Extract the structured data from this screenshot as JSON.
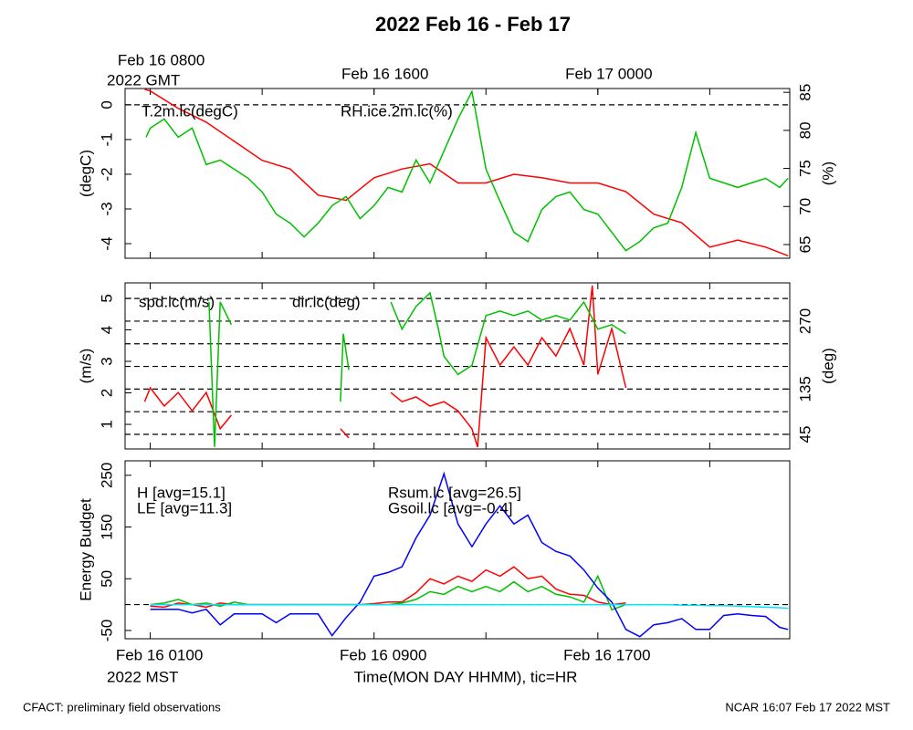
{
  "title": "2022 Feb 16 - Feb 17",
  "footer_left": "CFACT: preliminary field observations",
  "footer_right": "NCAR 16:07 Feb 17 2022 MST",
  "chart_data": [
    {
      "type": "line",
      "ylabel": "(degC)",
      "y2label": "(%)",
      "xlim": [
        0.1,
        23.86
      ],
      "xticks": [
        1,
        5,
        9,
        13,
        17,
        21
      ],
      "top_xticks": [
        {
          "value": 1,
          "label": "Feb 16 0800"
        },
        {
          "value": 9,
          "label": "Feb 16 1600"
        },
        {
          "value": 17,
          "label": "Feb 17 0000"
        }
      ],
      "top_xtick_note": "2022 GMT",
      "ylim": [
        -4.42,
        0.47
      ],
      "yticks": [
        0,
        -1,
        -2,
        -3,
        -4
      ],
      "y2lim": [
        63.2,
        85.5
      ],
      "y2ticks": [
        65,
        70,
        75,
        80,
        85
      ],
      "hlines": [
        0
      ],
      "hlines_axis": "y",
      "series": [
        {
          "name": "T.2m.lc(degC)",
          "color": "#ff0000",
          "axis": "y",
          "x": [
            0.8,
            1,
            2,
            3,
            4,
            5,
            6,
            7,
            8,
            9,
            10,
            11,
            12,
            13,
            14,
            15,
            16,
            17,
            18,
            19,
            20,
            21,
            22,
            23,
            23.8
          ],
          "values": [
            0.45,
            0.4,
            -0.1,
            -0.5,
            -1.05,
            -1.6,
            -1.85,
            -2.6,
            -2.75,
            -2.1,
            -1.85,
            -1.7,
            -2.25,
            -2.25,
            -2,
            -2.1,
            -2.25,
            -2.25,
            -2.5,
            -3.15,
            -3.4,
            -4.1,
            -3.9,
            -4.1,
            -4.35
          ]
        },
        {
          "name": "RH.ice.2m.lc(%)",
          "color": "#00c000",
          "axis": "y2",
          "x": [
            0.85,
            1,
            1.5,
            2,
            2.5,
            3,
            3.5,
            4,
            4.5,
            5,
            5.5,
            6,
            6.5,
            7,
            7.5,
            8,
            8.5,
            9,
            9.5,
            10,
            10.5,
            11,
            11.5,
            12,
            12.5,
            13,
            13.5,
            14,
            14.5,
            15,
            15.5,
            16,
            16.5,
            17,
            17.5,
            18,
            18.5,
            19,
            19.5,
            20,
            20.5,
            21,
            21.5,
            22,
            22.5,
            23,
            23.5,
            23.8
          ],
          "values": [
            79.1,
            80.3,
            81.5,
            79.1,
            80.3,
            75.5,
            76.1,
            74.9,
            73.7,
            71.9,
            69,
            67.8,
            66,
            67.8,
            70.1,
            71.3,
            68.4,
            70.1,
            72.5,
            71.9,
            76.1,
            73.1,
            77.3,
            81.5,
            85.1,
            74.9,
            70.7,
            66.6,
            65.4,
            69.6,
            71.3,
            71.9,
            69.6,
            69,
            66.6,
            64.2,
            65.4,
            67.2,
            67.8,
            72.5,
            79.7,
            73.7,
            73.1,
            72.5,
            73.1,
            73.7,
            72.5,
            73.7
          ]
        }
      ]
    },
    {
      "type": "line",
      "ylabel": "(m/s)",
      "y2label": "(deg)",
      "xlim": [
        0.1,
        23.86
      ],
      "xticks": [
        1,
        5,
        9,
        13,
        17,
        21
      ],
      "ylim": [
        0.22,
        5.49
      ],
      "yticks": [
        1,
        2,
        3,
        4,
        5
      ],
      "y2lim": [
        16,
        346
      ],
      "y2ticks": [
        45,
        135,
        270
      ],
      "hlines": [
        45,
        90,
        135,
        180,
        225,
        270,
        315
      ],
      "hlines_axis": "y2",
      "series": [
        {
          "name": "spd.lc(m/s)",
          "color": "#ff0000",
          "axis": "y",
          "x": [
            0.8,
            1,
            1.5,
            2,
            2.5,
            3,
            3.5,
            3.9,
            5,
            7.8,
            8.1,
            9,
            9.6,
            10,
            10.5,
            11,
            11.5,
            12,
            12.5,
            12.7,
            13,
            13.5,
            14,
            14.5,
            15,
            15.5,
            16,
            16.5,
            16.8,
            17,
            17.5,
            18
          ],
          "values": [
            1.72,
            2.16,
            1.58,
            2.01,
            1.43,
            2.01,
            0.86,
            1.29,
            null,
            0.86,
            0.57,
            null,
            2.01,
            1.72,
            1.87,
            1.58,
            1.72,
            1.43,
            0.86,
            0.28,
            3.75,
            2.88,
            3.46,
            2.88,
            3.75,
            3.17,
            4.04,
            2.88,
            5.4,
            2.59,
            4.04,
            2.16
          ]
        },
        {
          "name": "dir.lc(deg)",
          "color": "#00c000",
          "axis": "y2",
          "x": [
            3.1,
            3.3,
            3.5,
            3.9,
            5,
            7.8,
            7.9,
            8.1,
            9,
            9.6,
            10,
            10.5,
            11,
            11.3,
            11.5,
            12,
            12.5,
            13,
            13.5,
            14,
            14.5,
            15,
            15.5,
            16,
            16.5,
            17,
            17.5,
            18
          ],
          "values": [
            308,
            20,
            308,
            263,
            null,
            110,
            245,
            173,
            null,
            308,
            254,
            299,
            326,
            254,
            200,
            164,
            182,
            281,
            290,
            281,
            290,
            272,
            281,
            272,
            308,
            254,
            263,
            245
          ]
        }
      ]
    },
    {
      "type": "line",
      "ylabel": "Energy Budget",
      "xlabel": "Time(MON DAY HHMM), tic=HR",
      "xlim": [
        0.1,
        23.86
      ],
      "xticks": [
        {
          "value": 1,
          "label": "Feb 16 0100"
        },
        {
          "value": 9,
          "label": "Feb 16 0900"
        },
        {
          "value": 17,
          "label": "Feb 16 1700"
        }
      ],
      "minor_xticks": [
        5,
        13,
        21
      ],
      "xtick_note": "2022 MST",
      "ylim": [
        -66,
        278
      ],
      "yticks": [
        -50,
        50,
        150,
        250
      ],
      "hlines": [
        0
      ],
      "hlines_axis": "y",
      "x": [
        1,
        1.5,
        2,
        2.5,
        3,
        3.5,
        4,
        4.5,
        5,
        5.5,
        6,
        6.5,
        7,
        7.5,
        8,
        8.5,
        9,
        9.5,
        10,
        10.5,
        11,
        11.5,
        12,
        12.5,
        13,
        13.5,
        14,
        14.5,
        15,
        15.5,
        16,
        16.5,
        17,
        17.5,
        18,
        18.5,
        19,
        19.5,
        20,
        20.5,
        21,
        21.5,
        22,
        22.5,
        23,
        23.5,
        23.8
      ],
      "series": [
        {
          "name": "H [avg=15.1]",
          "color": "#ff0000",
          "values": [
            -3,
            -5,
            3,
            0,
            -5,
            3,
            0,
            0,
            0,
            0,
            0,
            0,
            0,
            0,
            0,
            0,
            2,
            5,
            5,
            23,
            50,
            40,
            55,
            45,
            67,
            55,
            73,
            50,
            55,
            30,
            20,
            18,
            5,
            0,
            3,
            null,
            null,
            null,
            null,
            null,
            null,
            null,
            null,
            null,
            null,
            null,
            null
          ]
        },
        {
          "name": "LE [avg=11.3]",
          "color": "#00c000",
          "values": [
            0,
            3,
            10,
            0,
            3,
            -3,
            5,
            0,
            0,
            0,
            0,
            0,
            0,
            0,
            0,
            0,
            0,
            0,
            3,
            10,
            25,
            20,
            35,
            25,
            35,
            25,
            44,
            25,
            35,
            20,
            15,
            5,
            55,
            -10,
            0,
            null,
            null,
            null,
            null,
            null,
            null,
            null,
            null,
            null,
            null,
            null,
            null
          ]
        },
        {
          "name": "Rsum.lc [avg=26.5]",
          "color": "#0000ff",
          "values": [
            -9,
            -9,
            -9,
            -16,
            -9,
            -39,
            -18,
            -18,
            -18,
            -35,
            -18,
            -18,
            -18,
            -60,
            -25,
            5,
            55,
            62,
            73,
            129,
            173,
            253,
            156,
            112,
            156,
            191,
            156,
            173,
            120,
            103,
            94,
            67,
            32,
            5,
            -48,
            -62,
            -39,
            -35,
            -27,
            -48,
            -48,
            -21,
            -18,
            -21,
            -23,
            -44,
            -48
          ]
        },
        {
          "name": "Gsoil.lc [avg=-0.4]",
          "color": "#00e5ff",
          "values": [
            0,
            0,
            0,
            0,
            0,
            0,
            0,
            0,
            0,
            0,
            0,
            0,
            0,
            0,
            0,
            0,
            0,
            0,
            0,
            0,
            0,
            0,
            0,
            0,
            0,
            0,
            0,
            0,
            0,
            0,
            0,
            0,
            0,
            0,
            0,
            0,
            0,
            0,
            -1,
            -1,
            -2,
            -2,
            -3,
            -4,
            -5,
            -6,
            -7
          ]
        }
      ]
    }
  ]
}
